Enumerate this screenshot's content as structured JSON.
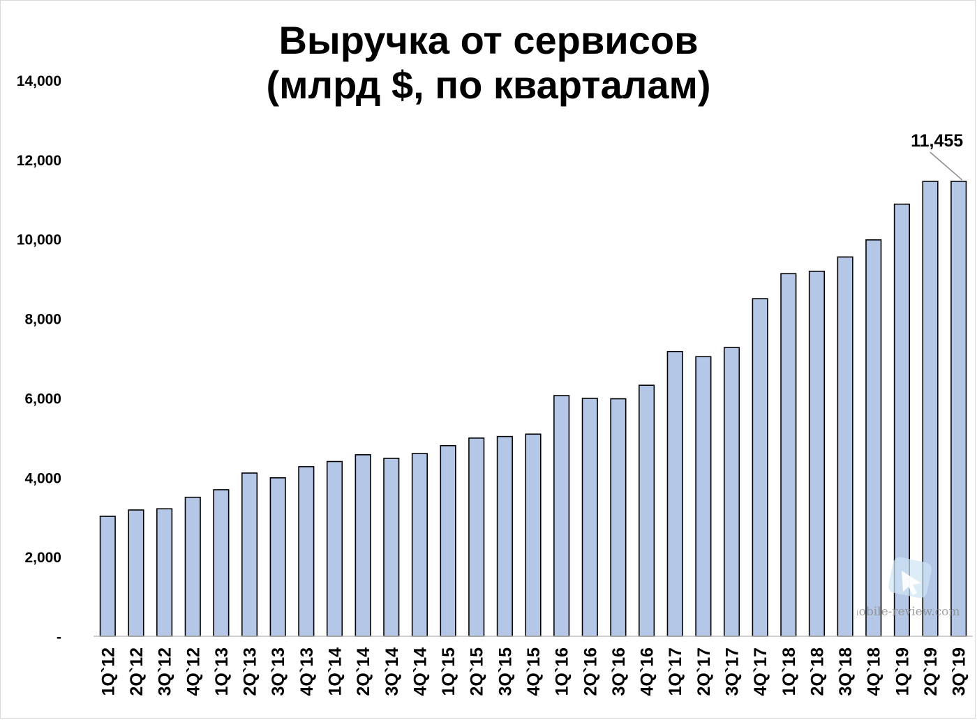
{
  "chart_data": {
    "type": "bar",
    "title": [
      "Выручка от сервисов",
      "(млрд $, по кварталам)"
    ],
    "xlabel": "",
    "ylabel": "",
    "ylim": [
      0,
      14000
    ],
    "yticks": [
      0,
      2000,
      4000,
      6000,
      8000,
      10000,
      12000,
      14000
    ],
    "ytick_labels": [
      "-",
      "2,000",
      "4,000",
      "6,000",
      "8,000",
      "10,000",
      "12,000",
      "14,000"
    ],
    "categories": [
      "1Q`12",
      "2Q`12",
      "3Q`12",
      "4Q`12",
      "1Q`13",
      "2Q`13",
      "3Q`13",
      "4Q`13",
      "1Q`14",
      "2Q`14",
      "3Q`14",
      "4Q`14",
      "1Q`15",
      "2Q`15",
      "3Q`15",
      "4Q`15",
      "1Q`16",
      "2Q`16",
      "3Q`16",
      "4Q`16",
      "1Q`17",
      "2Q`17",
      "3Q`17",
      "4Q`17",
      "1Q`18",
      "2Q`18",
      "3Q`18",
      "4Q`18",
      "1Q`19",
      "2Q`19",
      "3Q`19"
    ],
    "values": [
      3020,
      3180,
      3210,
      3500,
      3690,
      4110,
      3990,
      4270,
      4400,
      4570,
      4480,
      4600,
      4800,
      4990,
      5030,
      5090,
      6060,
      5990,
      5980,
      6320,
      7170,
      7040,
      7270,
      8500,
      9130,
      9190,
      9550,
      9980,
      10880,
      11455,
      11455
    ],
    "annotation": {
      "label": "11,455",
      "category": "3Q`19"
    },
    "bar_color": "#b4c7e7",
    "bar_edge_color": "#000000",
    "grid": false,
    "legend": "none"
  },
  "watermark": {
    "text": "mobile-review.com"
  }
}
